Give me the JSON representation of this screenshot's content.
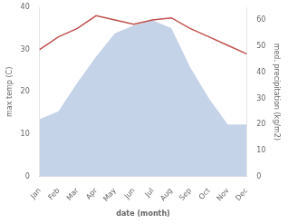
{
  "chart_data": {
    "type": "line",
    "xlabel": "date (month)",
    "ylabel": "max temp (C)",
    "y2label": "med. precipitation (kg/m2)",
    "categories": [
      "Jan",
      "Feb",
      "Mar",
      "Apr",
      "May",
      "Jun",
      "Jul",
      "Aug",
      "Sep",
      "Oct",
      "Nov",
      "Dec"
    ],
    "series": [
      {
        "type": "area",
        "color": "#c5d3e8",
        "axis": "y2",
        "values": [
          22,
          25,
          36,
          46,
          55,
          58,
          60,
          57,
          42,
          30,
          20,
          20
        ]
      },
      {
        "type": "line",
        "color": "#c0504d",
        "values": [
          30,
          33,
          35,
          38,
          37,
          36,
          37,
          37.5,
          35,
          33,
          31,
          29
        ]
      }
    ],
    "ylim": [
      0,
      40
    ],
    "yticks": [
      0,
      10,
      20,
      30,
      40
    ],
    "y2lim": [
      0,
      65
    ],
    "y2ticks": [
      0,
      10,
      20,
      30,
      40,
      50,
      60
    ],
    "grid": false
  }
}
